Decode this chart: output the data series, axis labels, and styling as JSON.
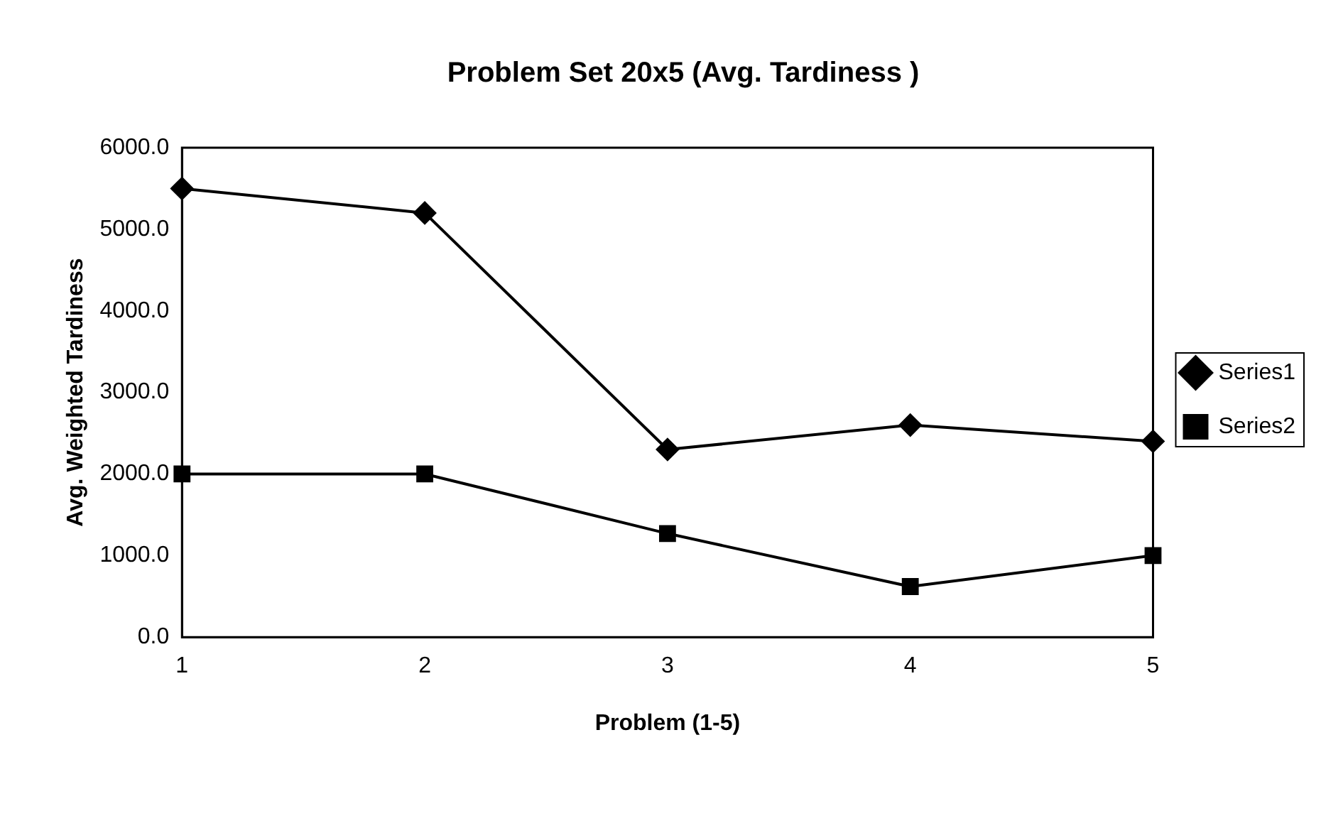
{
  "chart_data": {
    "type": "line",
    "title": "Problem Set 20x5 (Avg. Tardiness )",
    "xlabel": "Problem (1-5)",
    "ylabel": "Avg. Weighted Tardiness",
    "categories": [
      "1",
      "2",
      "3",
      "4",
      "5"
    ],
    "series": [
      {
        "name": "Series1",
        "color": "#000000",
        "marker": "diamond",
        "values": [
          5500,
          5200,
          2300,
          2600,
          2400
        ]
      },
      {
        "name": "Series2",
        "color": "#000000",
        "marker": "square",
        "values": [
          2000,
          2000,
          1270,
          620,
          1000
        ]
      }
    ],
    "ylim": [
      0,
      6000
    ],
    "yticks": [
      {
        "value": 0,
        "label": "0.0"
      },
      {
        "value": 1000,
        "label": "1000.0"
      },
      {
        "value": 2000,
        "label": "2000.0"
      },
      {
        "value": 3000,
        "label": "3000.0"
      },
      {
        "value": 4000,
        "label": "4000.0"
      },
      {
        "value": 5000,
        "label": "5000.0"
      },
      {
        "value": 6000,
        "label": "6000.0"
      }
    ],
    "grid": false,
    "legend": "right",
    "line_style": "solid"
  }
}
